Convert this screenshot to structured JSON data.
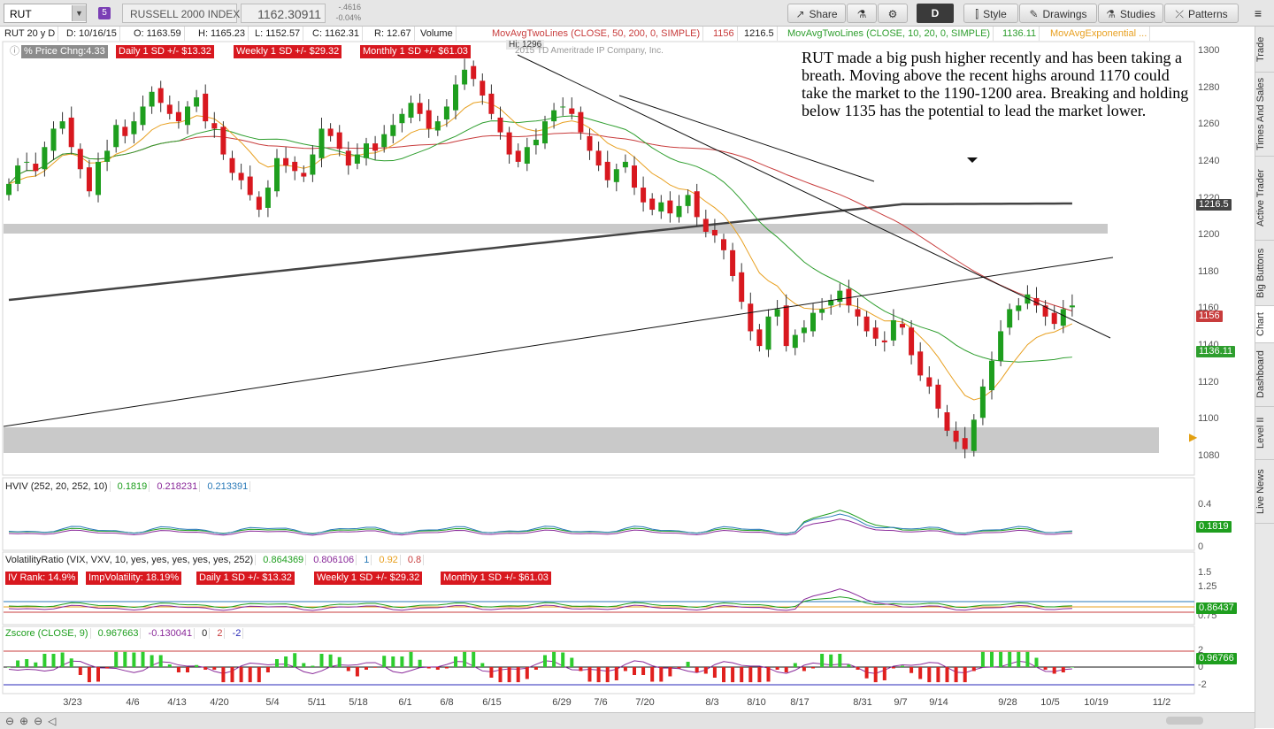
{
  "toolbar": {
    "symbol": "RUT",
    "link_badge": "5",
    "index_name": "RUSSELL 2000 INDEX",
    "last": "1162.30911",
    "net_change": "-.4616",
    "pct_change": "-0.04%",
    "share": "Share",
    "aggregation": "D",
    "style": "Style",
    "drawings": "Drawings",
    "studies": "Studies",
    "patterns": "Patterns"
  },
  "study_bar": {
    "period": "RUT 20 y D",
    "date": "D: 10/16/15",
    "open": "O: 1163.59",
    "high": "H: 1165.23",
    "low": "L: 1152.57",
    "close": "C: 1162.31",
    "range": "R: 12.67",
    "volume": "Volume",
    "ma1": "MovAvgTwoLines (CLOSE, 50, 200, 0, SIMPLE)",
    "ma1_v1": "1156",
    "ma1_v2": "1216.5",
    "ma2": "MovAvgTwoLines (CLOSE, 10, 20, 0, SIMPLE)",
    "ma2_v1": "1136.11",
    "ma3": "MovAvgExponential ..."
  },
  "price_pane": {
    "pct_label": "% Price Chng:4.33",
    "daily_sd": "Daily 1 SD +/- $13.32",
    "weekly_sd": "Weekly 1 SD +/- $29.32",
    "monthly_sd": "Monthly 1 SD +/- $61.03",
    "hi_label": "Hi: 1296",
    "copyright": "2015 TD Ameritrade IP Company, Inc.",
    "annotation": "RUT made a big push higher recently and has been taking a breath.  Moving above the recent highs around 1170 could take the market to the 1190-1200 area.  Breaking and holding below 1135 has the potential to lead the market lower.",
    "y_ticks": [
      "1300",
      "1280",
      "1260",
      "1240",
      "1220",
      "1200",
      "1180",
      "1160",
      "1140",
      "1120",
      "1100",
      "1080"
    ],
    "tag_200": "1216.5",
    "tag_50": "1156",
    "tag_20": "1136.11"
  },
  "hviv_pane": {
    "label": "HVIV (252, 20, 252, 10)",
    "v1": "0.1819",
    "v2": "0.218231",
    "v3": "0.213391",
    "y_ticks": [
      "0.4",
      "0"
    ],
    "tag": "0.1819"
  },
  "vr_pane": {
    "label": "VolatilityRatio (VIX, VXV, 10, yes, yes, yes, yes, yes, 252)",
    "v1": "0.864369",
    "v2": "0.806106",
    "v3": "1",
    "v4": "0.92",
    "v5": "0.8",
    "iv_rank": "IV Rank: 14.9%",
    "imp_vol": "ImpVolatility: 18.19%",
    "daily_sd": "Daily 1 SD +/- $13.32",
    "weekly_sd": "Weekly 1 SD +/- $29.32",
    "monthly_sd": "Monthly 1 SD +/- $61.03",
    "y_ticks": [
      "1.5",
      "1.25",
      "0.75"
    ],
    "tag": "0.86437"
  },
  "z_pane": {
    "label": "Zscore (CLOSE, 9)",
    "v1": "0.967663",
    "v2": "-0.130041",
    "v3": "0",
    "v4": "2",
    "v5": "-2",
    "y_ticks": [
      "2",
      "0",
      "-2"
    ],
    "tag": "0.96766"
  },
  "dates": [
    "3/23",
    "4/6",
    "4/13",
    "4/20",
    "5/4",
    "5/11",
    "5/18",
    "6/1",
    "6/8",
    "6/15",
    "6/29",
    "7/6",
    "7/20",
    "8/3",
    "8/10",
    "8/17",
    "8/31",
    "9/7",
    "9/14",
    "9/28",
    "10/5",
    "10/19",
    "11/2"
  ],
  "sidebar_tabs": [
    "Trade",
    "Times And Sales",
    "Active Trader",
    "Big Buttons",
    "Chart",
    "Dashboard",
    "Level II",
    "Live News"
  ],
  "colors": {
    "up": "#1e9e1e",
    "down": "#d8181f",
    "ma200": "#444444",
    "ma50": "#c83c3c",
    "ma20": "#2e9e2e",
    "ema": "#e8a020"
  },
  "chart_data": {
    "type": "candlestick",
    "symbol": "RUT",
    "ylim": [
      1070,
      1305
    ],
    "closes": [
      1228,
      1238,
      1240,
      1235,
      1248,
      1258,
      1262,
      1248,
      1236,
      1224,
      1240,
      1246,
      1260,
      1254,
      1262,
      1270,
      1278,
      1272,
      1266,
      1262,
      1270,
      1275,
      1262,
      1258,
      1244,
      1234,
      1230,
      1222,
      1214,
      1226,
      1242,
      1238,
      1235,
      1232,
      1244,
      1258,
      1254,
      1247,
      1238,
      1244,
      1250,
      1246,
      1255,
      1260,
      1266,
      1272,
      1266,
      1258,
      1262,
      1270,
      1282,
      1290,
      1285,
      1276,
      1266,
      1256,
      1244,
      1240,
      1248,
      1252,
      1262,
      1268,
      1270,
      1266,
      1256,
      1246,
      1238,
      1230,
      1236,
      1240,
      1226,
      1218,
      1214,
      1218,
      1212,
      1216,
      1222,
      1210,
      1202,
      1200,
      1192,
      1178,
      1164,
      1148,
      1140,
      1156,
      1160,
      1140,
      1146,
      1150,
      1158,
      1160,
      1165,
      1170,
      1162,
      1156,
      1148,
      1144,
      1142,
      1154,
      1150,
      1135,
      1124,
      1118,
      1106,
      1094,
      1088,
      1084,
      1100,
      1118,
      1132,
      1148,
      1160,
      1162,
      1168,
      1162,
      1156,
      1152,
      1160,
      1162
    ]
  }
}
